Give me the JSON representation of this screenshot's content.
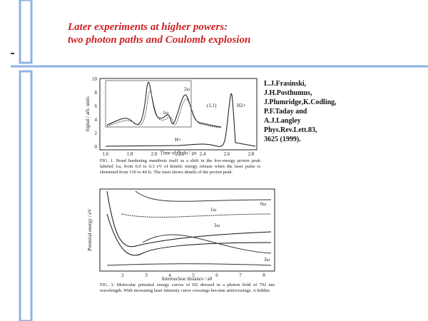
{
  "slide": {
    "title": [
      "Later experiments at higher powers:",
      "two photon paths and Coulomb explosion"
    ],
    "citation": [
      "L.J.Frasinski,",
      "J.H.Posthumus,",
      "J.Plumridge,K.Codling,",
      "P.F.Taday and",
      "A.J.Langley",
      "Phys.Rev.Lett.83,",
      "3625 (1999)."
    ],
    "figure1": {
      "y_label": "Signal / arb. units",
      "x_label": "Time of flight / µs",
      "yticks": [
        "0",
        "2",
        "4",
        "6",
        "8",
        "10"
      ],
      "xticks": [
        "1.6",
        "1.8",
        "2.0",
        "2.2",
        "2.4",
        "2.6",
        "2.8"
      ],
      "labels": [
        "2ω",
        "1ω",
        "(1,1)",
        "H2+",
        "H+"
      ],
      "caption": "FIG. 1. Bond hardening manifests itself as a shift in the low-energy proton peak labeled 1ω, from 0.0 to 0.3 eV of kinetic energy release when the laser pulse is shortened from 130 to 44 fs. The inset shows details of the proton peak."
    },
    "figure3": {
      "y_label": "Potential energy / eV",
      "x_label": "Internuclear distance / a0",
      "xticks": [
        "2",
        "3",
        "4",
        "5",
        "6",
        "7",
        "8"
      ],
      "labels": [
        "0ω",
        "1ω",
        "2ω",
        "3ω"
      ],
      "caption": "FIG. 3. Molecular potential energy curves of H2 dressed in a photon field of 792 nm wavelength. With increasing laser intensity curve crossings become anticrossings. A hidden"
    }
  }
}
